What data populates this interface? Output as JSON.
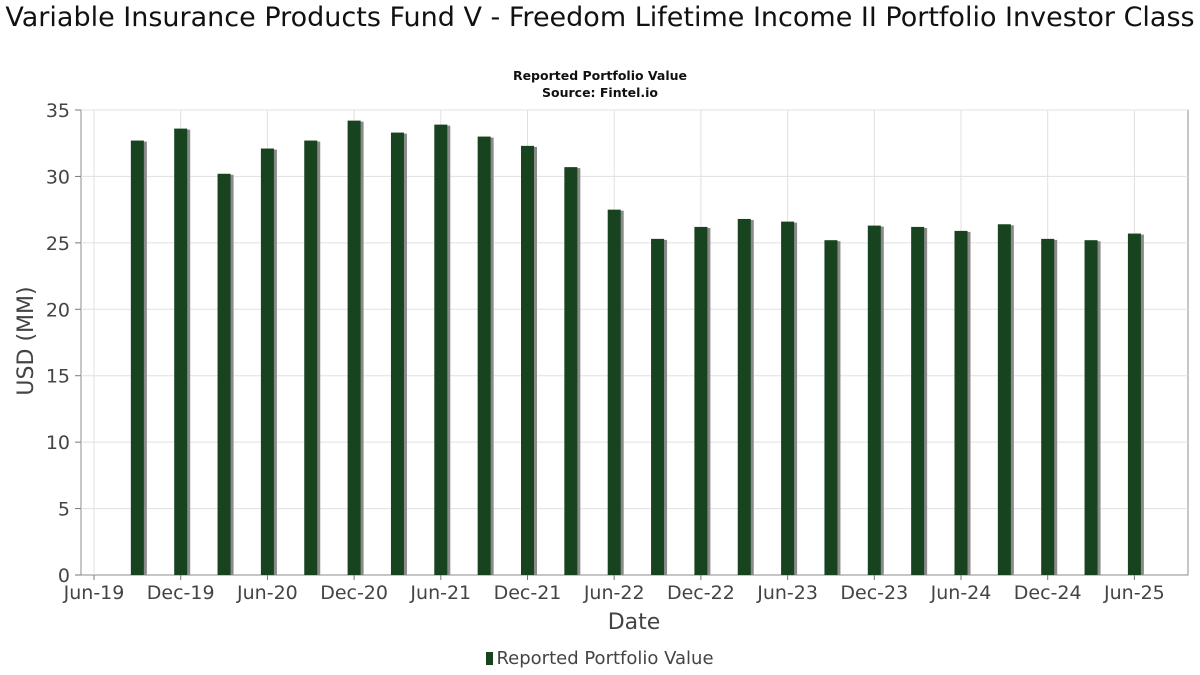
{
  "chart_data": {
    "type": "bar",
    "title": "Variable Insurance Products Fund V - Freedom Lifetime Income II Portfolio Investor Class",
    "subtitle": "Reported Portfolio Value",
    "source": "Source: Fintel.io",
    "xlabel": "Date",
    "ylabel": "USD (MM)",
    "ylim": [
      0,
      35
    ],
    "yticks": [
      "0",
      "5",
      "10",
      "15",
      "20",
      "25",
      "30",
      "35"
    ],
    "xticks": [
      "Jun-19",
      "Dec-19",
      "Jun-20",
      "Dec-20",
      "Jun-21",
      "Dec-21",
      "Jun-22",
      "Dec-22",
      "Jun-23",
      "Dec-23",
      "Jun-24",
      "Dec-24",
      "Jun-25"
    ],
    "grid": true,
    "legend_position": "bottom-center",
    "bar_color": "#17431f",
    "shadow_color": "#8a8a8a",
    "categories": [
      "Sep-19",
      "Dec-19",
      "Mar-20",
      "Jun-20",
      "Sep-20",
      "Dec-20",
      "Mar-21",
      "Jun-21",
      "Sep-21",
      "Dec-21",
      "Mar-22",
      "Jun-22",
      "Sep-22",
      "Dec-22",
      "Mar-23",
      "Jun-23",
      "Sep-23",
      "Dec-23",
      "Mar-24",
      "Jun-24",
      "Sep-24",
      "Dec-24",
      "Mar-25",
      "Jun-25"
    ],
    "series": [
      {
        "name": "Reported Portfolio Value",
        "values": [
          32.7,
          33.6,
          30.2,
          32.1,
          32.7,
          34.2,
          33.3,
          33.9,
          33.0,
          32.3,
          30.7,
          27.5,
          25.3,
          26.2,
          26.8,
          26.6,
          25.2,
          26.3,
          26.2,
          25.9,
          26.4,
          25.3,
          25.2,
          25.7
        ]
      }
    ]
  }
}
